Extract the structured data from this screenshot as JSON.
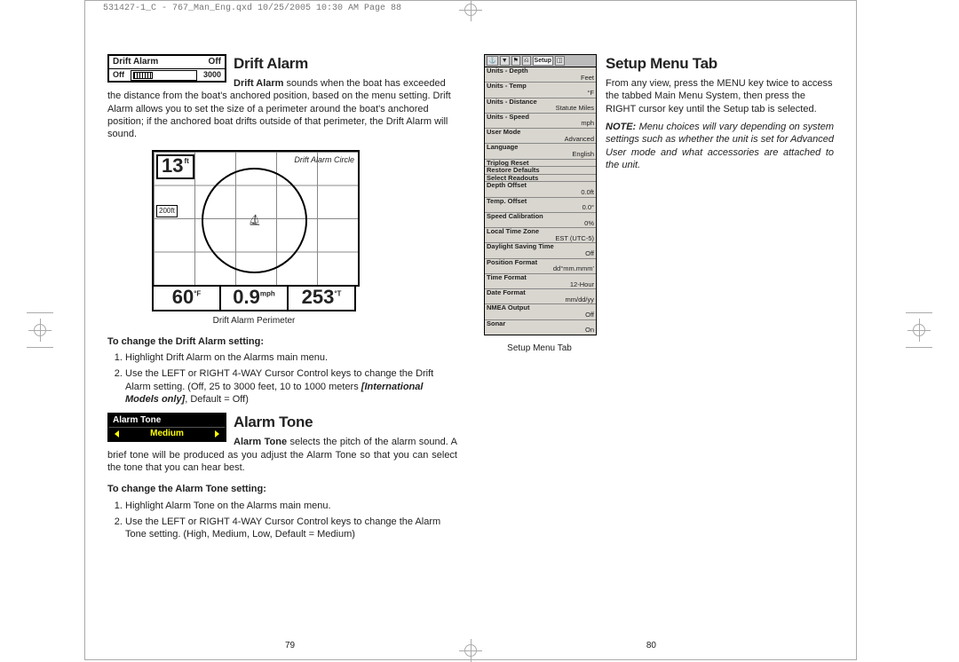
{
  "header_slug": "531427-1_C - 767_Man_Eng.qxd  10/25/2005  10:30 AM  Page 88",
  "left_pagenum": "79",
  "right_pagenum": "80",
  "drift": {
    "widget_title": "Drift Alarm",
    "widget_value": "Off",
    "slider_label": "Off",
    "slider_max": "3000",
    "heading": "Drift Alarm",
    "lead_bold": "Drift Alarm",
    "lead_text": " sounds when the boat has exceeded the distance from the boat's anchored position, based on the menu setting. Drift Alarm allows you to set the size of a perimeter around the boat's anchored position; if the anchored boat drifts outside of that perimeter, the Drift Alarm will sound.",
    "figure": {
      "depth": "13",
      "depth_unit": "ft",
      "side_label": "200ft",
      "circle_label": "Drift Alarm Circle",
      "temp": "60",
      "temp_unit": "°F",
      "speed": "0.9",
      "speed_unit": "mph",
      "heading": "253",
      "heading_unit": "°T",
      "caption": "Drift Alarm Perimeter"
    },
    "change_head": "To change the Drift Alarm setting:",
    "steps": [
      "Highlight Drift Alarm on the Alarms main menu.",
      "Use the LEFT or RIGHT 4-WAY Cursor Control keys to change the Drift Alarm setting. (Off, 25 to 3000 feet, 10 to 1000 meters [International Models only], Default = Off)"
    ],
    "steps_ital": "[International Models only]"
  },
  "tone": {
    "widget_title": "Alarm Tone",
    "widget_value": "Medium",
    "heading": "Alarm Tone",
    "lead_bold": "Alarm Tone",
    "lead_text": " selects the pitch of the alarm sound. A brief tone will be produced as you adjust the Alarm Tone so that you can select the tone that you can hear best.",
    "change_head": "To change the Alarm Tone setting:",
    "steps": [
      "Highlight Alarm Tone on the Alarms main menu.",
      "Use the LEFT or RIGHT 4-WAY Cursor Control keys to change the Alarm Tone setting. (High, Medium, Low, Default = Medium)"
    ]
  },
  "setup": {
    "heading": "Setup Menu Tab",
    "body": "From any view, press the MENU key twice to access the tabbed Main Menu System, then press the RIGHT cursor key until the Setup tab is selected.",
    "note_bold": "NOTE:",
    "note_ital": " Menu choices will vary depending on system settings such as whether the unit is set for Advanced User mode and what accessories are attached to the unit.",
    "tabs": [
      "⚓",
      "▼",
      "⚑",
      "⎌",
      "Setup",
      "◫"
    ],
    "active_tab": "Setup",
    "rows": [
      {
        "name": "Units - Depth",
        "value": "Feet"
      },
      {
        "name": "Units - Temp",
        "value": "°F"
      },
      {
        "name": "Units - Distance",
        "value": "Statute Miles"
      },
      {
        "name": "Units - Speed",
        "value": "mph"
      },
      {
        "name": "User Mode",
        "value": "Advanced"
      },
      {
        "name": "Language",
        "value": "English"
      },
      {
        "name": "Triplog Reset",
        "value": ""
      },
      {
        "name": "Restore Defaults",
        "value": ""
      },
      {
        "name": "Select Readouts",
        "value": ""
      },
      {
        "name": "Depth Offset",
        "value": "0.0ft"
      },
      {
        "name": "Temp. Offset",
        "value": "0.0°"
      },
      {
        "name": "Speed Calibration",
        "value": "0%"
      },
      {
        "name": "Local Time Zone",
        "value": "EST (UTC-5)"
      },
      {
        "name": "Daylight Saving Time",
        "value": "Off"
      },
      {
        "name": "Position Format",
        "value": "dd°mm.mmm'"
      },
      {
        "name": "Time Format",
        "value": "12-Hour"
      },
      {
        "name": "Date Format",
        "value": "mm/dd/yy"
      },
      {
        "name": "NMEA Output",
        "value": "Off"
      },
      {
        "name": "Sonar",
        "value": "On"
      }
    ],
    "caption": "Setup Menu Tab"
  }
}
